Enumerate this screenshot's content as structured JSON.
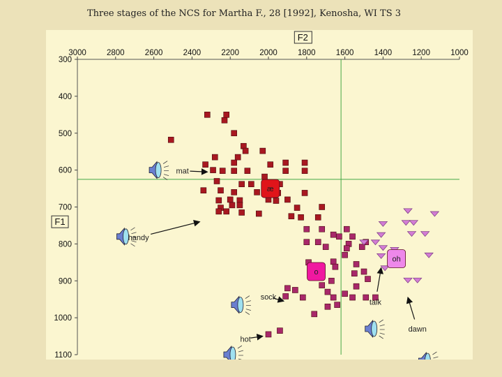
{
  "slide": {
    "title": "Three stages of the NCS for Martha F., 28 [1992], Kenosha, WI TS 3"
  },
  "chart_data": {
    "type": "scatter",
    "x_axis": {
      "name": "F2",
      "reversed": true,
      "range": [
        3000,
        1000
      ],
      "ticks": [
        3000,
        2800,
        2600,
        2400,
        2200,
        2000,
        1800,
        1600,
        1400,
        1200,
        1000
      ]
    },
    "y_axis": {
      "name": "F1",
      "reversed": true,
      "range": [
        300,
        1100
      ],
      "ticks": [
        300,
        400,
        500,
        600,
        700,
        800,
        900,
        1000,
        1100
      ]
    },
    "reference_lines": {
      "f2": 1620,
      "f1": 625
    },
    "colors": {
      "background": "#fbf6d0",
      "ref_line": "#45a845",
      "red": "#a81820",
      "purple": "#a8286a",
      "violet": "#d27cd4",
      "red_mean": "#e0141a",
      "pink_mean": "#f018a0",
      "violet_mean": "#ee88ea"
    },
    "series": [
      {
        "marker": "square",
        "color": "red",
        "points": [
          [
            2320,
            450
          ],
          [
            2220,
            450
          ],
          [
            2230,
            465
          ],
          [
            2510,
            518
          ],
          [
            2180,
            500
          ],
          [
            2130,
            535
          ],
          [
            2120,
            548
          ],
          [
            2030,
            548
          ],
          [
            2280,
            565
          ],
          [
            2160,
            565
          ],
          [
            2180,
            580
          ],
          [
            1990,
            585
          ],
          [
            1910,
            580
          ],
          [
            1810,
            580
          ],
          [
            2330,
            585
          ],
          [
            2290,
            600
          ],
          [
            2240,
            602
          ],
          [
            2180,
            602
          ],
          [
            2110,
            602
          ],
          [
            1910,
            602
          ],
          [
            1810,
            602
          ],
          [
            2020,
            618
          ],
          [
            2270,
            630
          ],
          [
            2140,
            638
          ],
          [
            2090,
            638
          ],
          [
            2000,
            638
          ],
          [
            1940,
            638
          ],
          [
            2340,
            655
          ],
          [
            2250,
            655
          ],
          [
            2180,
            660
          ],
          [
            2060,
            660
          ],
          [
            1950,
            662
          ],
          [
            1810,
            662
          ],
          [
            2200,
            680
          ],
          [
            2000,
            680
          ],
          [
            1900,
            680
          ],
          [
            2260,
            682
          ],
          [
            2150,
            682
          ],
          [
            1960,
            683
          ],
          [
            2190,
            695
          ],
          [
            2150,
            695
          ],
          [
            2250,
            702
          ],
          [
            1850,
            702
          ],
          [
            1720,
            700
          ],
          [
            2260,
            712
          ],
          [
            2220,
            712
          ],
          [
            2140,
            715
          ],
          [
            2050,
            718
          ],
          [
            1740,
            728
          ],
          [
            1830,
            728
          ],
          [
            1880,
            725
          ]
        ]
      },
      {
        "marker": "square",
        "color": "purple",
        "points": [
          [
            1800,
            760
          ],
          [
            1720,
            760
          ],
          [
            1590,
            760
          ],
          [
            1660,
            775
          ],
          [
            1630,
            780
          ],
          [
            1560,
            780
          ],
          [
            1800,
            795
          ],
          [
            1740,
            795
          ],
          [
            1580,
            800
          ],
          [
            1490,
            795
          ],
          [
            1700,
            808
          ],
          [
            1590,
            812
          ],
          [
            1510,
            808
          ],
          [
            1600,
            830
          ],
          [
            1790,
            850
          ],
          [
            1660,
            848
          ],
          [
            1540,
            855
          ],
          [
            1650,
            862
          ],
          [
            1760,
            870
          ],
          [
            1500,
            875
          ],
          [
            1550,
            880
          ],
          [
            1670,
            900
          ],
          [
            1480,
            895
          ],
          [
            1720,
            912
          ],
          [
            1900,
            920
          ],
          [
            1540,
            915
          ],
          [
            1860,
            925
          ],
          [
            1690,
            930
          ],
          [
            1600,
            935
          ],
          [
            1910,
            942
          ],
          [
            1820,
            945
          ],
          [
            1660,
            945
          ],
          [
            1560,
            945
          ],
          [
            1490,
            945
          ],
          [
            1440,
            945
          ],
          [
            1640,
            965
          ],
          [
            1690,
            970
          ],
          [
            1760,
            990
          ],
          [
            1940,
            1035
          ],
          [
            2000,
            1045
          ]
        ]
      },
      {
        "marker": "triangle",
        "color": "violet",
        "points": [
          [
            1270,
            710
          ],
          [
            1130,
            718
          ],
          [
            1280,
            742
          ],
          [
            1240,
            742
          ],
          [
            1400,
            745
          ],
          [
            1250,
            772
          ],
          [
            1180,
            772
          ],
          [
            1410,
            775
          ],
          [
            1500,
            795
          ],
          [
            1440,
            795
          ],
          [
            1400,
            810
          ],
          [
            1340,
            815
          ],
          [
            1160,
            830
          ],
          [
            1410,
            832
          ],
          [
            1390,
            865
          ],
          [
            1270,
            898
          ],
          [
            1220,
            898
          ]
        ]
      },
      {
        "marker": "square",
        "color": "red_mean",
        "mean": true,
        "points": [
          [
            1990,
            650
          ]
        ]
      },
      {
        "marker": "square",
        "color": "pink_mean",
        "mean": true,
        "points": [
          [
            1750,
            875
          ]
        ]
      },
      {
        "marker": "square",
        "color": "violet_mean",
        "mean": true,
        "points": [
          [
            1330,
            840
          ]
        ]
      }
    ],
    "mean_labels": [
      {
        "text": "æ",
        "at": [
          1990,
          650
        ]
      },
      {
        "text": "o",
        "at": [
          1750,
          875
        ]
      },
      {
        "text": "oh",
        "at": [
          1330,
          840
        ]
      }
    ],
    "annotations": [
      {
        "text": "mat",
        "speaker": [
          2580,
          600
        ],
        "label": [
          2450,
          602
        ],
        "arrow_to": [
          2320,
          605
        ]
      },
      {
        "text": "handy",
        "speaker": [
          2750,
          780
        ],
        "label": [
          2680,
          782
        ],
        "arrow_to": [
          2360,
          740
        ]
      },
      {
        "text": "sock",
        "speaker": [
          2150,
          965
        ],
        "label": [
          2000,
          943
        ],
        "arrow_to": [
          1920,
          955
        ]
      },
      {
        "text": "hot",
        "speaker": [
          2190,
          1100
        ],
        "label": [
          2120,
          1057
        ],
        "arrow_to": [
          2030,
          1050
        ]
      },
      {
        "text": "talk",
        "speaker": [
          1450,
          1030
        ],
        "label": [
          1440,
          957
        ],
        "arrow_to": [
          1410,
          865
        ]
      },
      {
        "text": "dawn",
        "speaker": [
          1170,
          1117
        ],
        "label": [
          1220,
          1030
        ],
        "arrow_to": [
          1270,
          945
        ]
      }
    ]
  }
}
